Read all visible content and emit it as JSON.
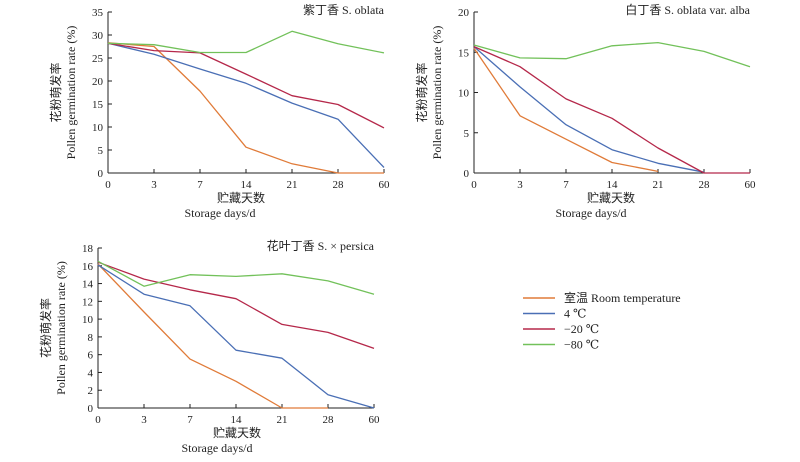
{
  "chart_data": [
    {
      "type": "line",
      "title": "紫丁香 S. oblata",
      "xlabel": "贮藏天数",
      "xlabel_en": "Storage days/d",
      "ylabel": "花粉萌发率",
      "ylabel_en": "Pollen germination rate (%)",
      "categories": [
        "0",
        "3",
        "7",
        "14",
        "21",
        "28",
        "60"
      ],
      "ylim": [
        0,
        35
      ],
      "yticks": [
        0,
        5,
        10,
        15,
        20,
        25,
        30,
        35
      ],
      "series": [
        {
          "name": "室温 Room temperature",
          "color": "#e07b39",
          "values": [
            28.3,
            27.5,
            17.8,
            5.6,
            2.0,
            0,
            0
          ]
        },
        {
          "name": "4 ℃",
          "color": "#4a6fb5",
          "values": [
            28.2,
            25.8,
            22.6,
            19.5,
            15.2,
            11.7,
            1.2
          ]
        },
        {
          "name": "−20 ℃",
          "color": "#b5284a",
          "values": [
            28.2,
            26.6,
            26.1,
            21.5,
            16.8,
            14.9,
            9.8
          ]
        },
        {
          "name": "−80 ℃",
          "color": "#72c15a",
          "values": [
            28.2,
            27.9,
            26.2,
            26.2,
            30.8,
            28.1,
            26.1
          ]
        }
      ]
    },
    {
      "type": "line",
      "title": "白丁香 S. oblata var. alba",
      "xlabel": "贮藏天数",
      "xlabel_en": "Storage days/d",
      "ylabel": "花粉萌发率",
      "ylabel_en": "Pollen germination rate (%)",
      "categories": [
        "0",
        "3",
        "7",
        "14",
        "21",
        "28",
        "60"
      ],
      "ylim": [
        0,
        20
      ],
      "yticks": [
        0,
        5,
        10,
        15,
        20
      ],
      "series": [
        {
          "name": "室温 Room temperature",
          "color": "#e07b39",
          "values": [
            15.5,
            7.1,
            4.2,
            1.3,
            0.2,
            null,
            null
          ]
        },
        {
          "name": "4 ℃",
          "color": "#4a6fb5",
          "values": [
            15.7,
            10.7,
            6.0,
            2.9,
            1.2,
            0.1,
            null
          ]
        },
        {
          "name": "−20 ℃",
          "color": "#b5284a",
          "values": [
            15.7,
            13.2,
            9.2,
            6.8,
            3.1,
            0,
            0
          ]
        },
        {
          "name": "−80 ℃",
          "color": "#72c15a",
          "values": [
            15.9,
            14.3,
            14.2,
            15.8,
            16.2,
            15.1,
            13.2
          ]
        }
      ]
    },
    {
      "type": "line",
      "title": "花叶丁香 S. × persica",
      "xlabel": "贮藏天数",
      "xlabel_en": "Storage days/d",
      "ylabel": "花粉萌发率",
      "ylabel_en": "Pollen germination rate (%)",
      "categories": [
        "0",
        "3",
        "7",
        "14",
        "21",
        "28",
        "60"
      ],
      "ylim": [
        0,
        18
      ],
      "yticks": [
        0,
        2,
        4,
        6,
        8,
        10,
        12,
        14,
        16,
        18
      ],
      "series": [
        {
          "name": "室温 Room temperature",
          "color": "#e07b39",
          "values": [
            16.2,
            10.8,
            5.5,
            3.0,
            0,
            0,
            null
          ]
        },
        {
          "name": "4 ℃",
          "color": "#4a6fb5",
          "values": [
            16.1,
            12.8,
            11.5,
            6.5,
            5.6,
            1.5,
            0
          ]
        },
        {
          "name": "−20 ℃",
          "color": "#b5284a",
          "values": [
            16.4,
            14.5,
            13.3,
            12.3,
            9.4,
            8.5,
            6.7
          ]
        },
        {
          "name": "−80 ℃",
          "color": "#72c15a",
          "values": [
            16.5,
            13.7,
            15.0,
            14.8,
            15.1,
            14.3,
            12.8
          ]
        }
      ]
    }
  ],
  "legend": {
    "entries": [
      {
        "label": "室温 Room temperature",
        "color": "#e07b39"
      },
      {
        "label": "4 ℃",
        "color": "#4a6fb5"
      },
      {
        "label": "−20 ℃",
        "color": "#b5284a"
      },
      {
        "label": "−80 ℃",
        "color": "#72c15a"
      }
    ]
  }
}
